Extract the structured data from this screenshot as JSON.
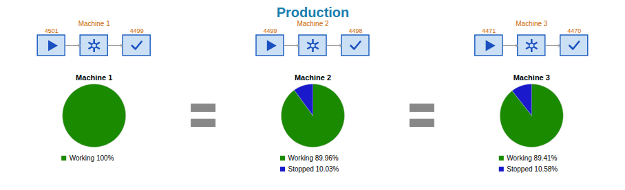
{
  "title": "Production",
  "chart_data": [
    {
      "type": "pie",
      "title": "Machine 1",
      "categories": [
        "Working 100%"
      ],
      "values": [
        100.0
      ],
      "colors": [
        "#1a8a00"
      ],
      "annotations": [
        "Machine 1",
        "4501",
        "4499"
      ],
      "legend": "bottom"
    },
    {
      "type": "pie",
      "title": "Machine 2",
      "categories": [
        "Working 89.96%",
        "Stopped 10.03%"
      ],
      "values": [
        89.96,
        10.03
      ],
      "colors": [
        "#1a8a00",
        "#1a1acc"
      ],
      "annotations": [
        "Machine 2",
        "4499",
        "4498"
      ],
      "legend": "bottom"
    },
    {
      "type": "pie",
      "title": "Machine 3",
      "categories": [
        "Working 89.41%",
        "Stopped 10.58%"
      ],
      "values": [
        89.41,
        10.58
      ],
      "colors": [
        "#1a8a00",
        "#1a1acc"
      ],
      "annotations": [
        "Machine 3",
        "4471",
        "4470"
      ],
      "legend": "bottom"
    }
  ]
}
